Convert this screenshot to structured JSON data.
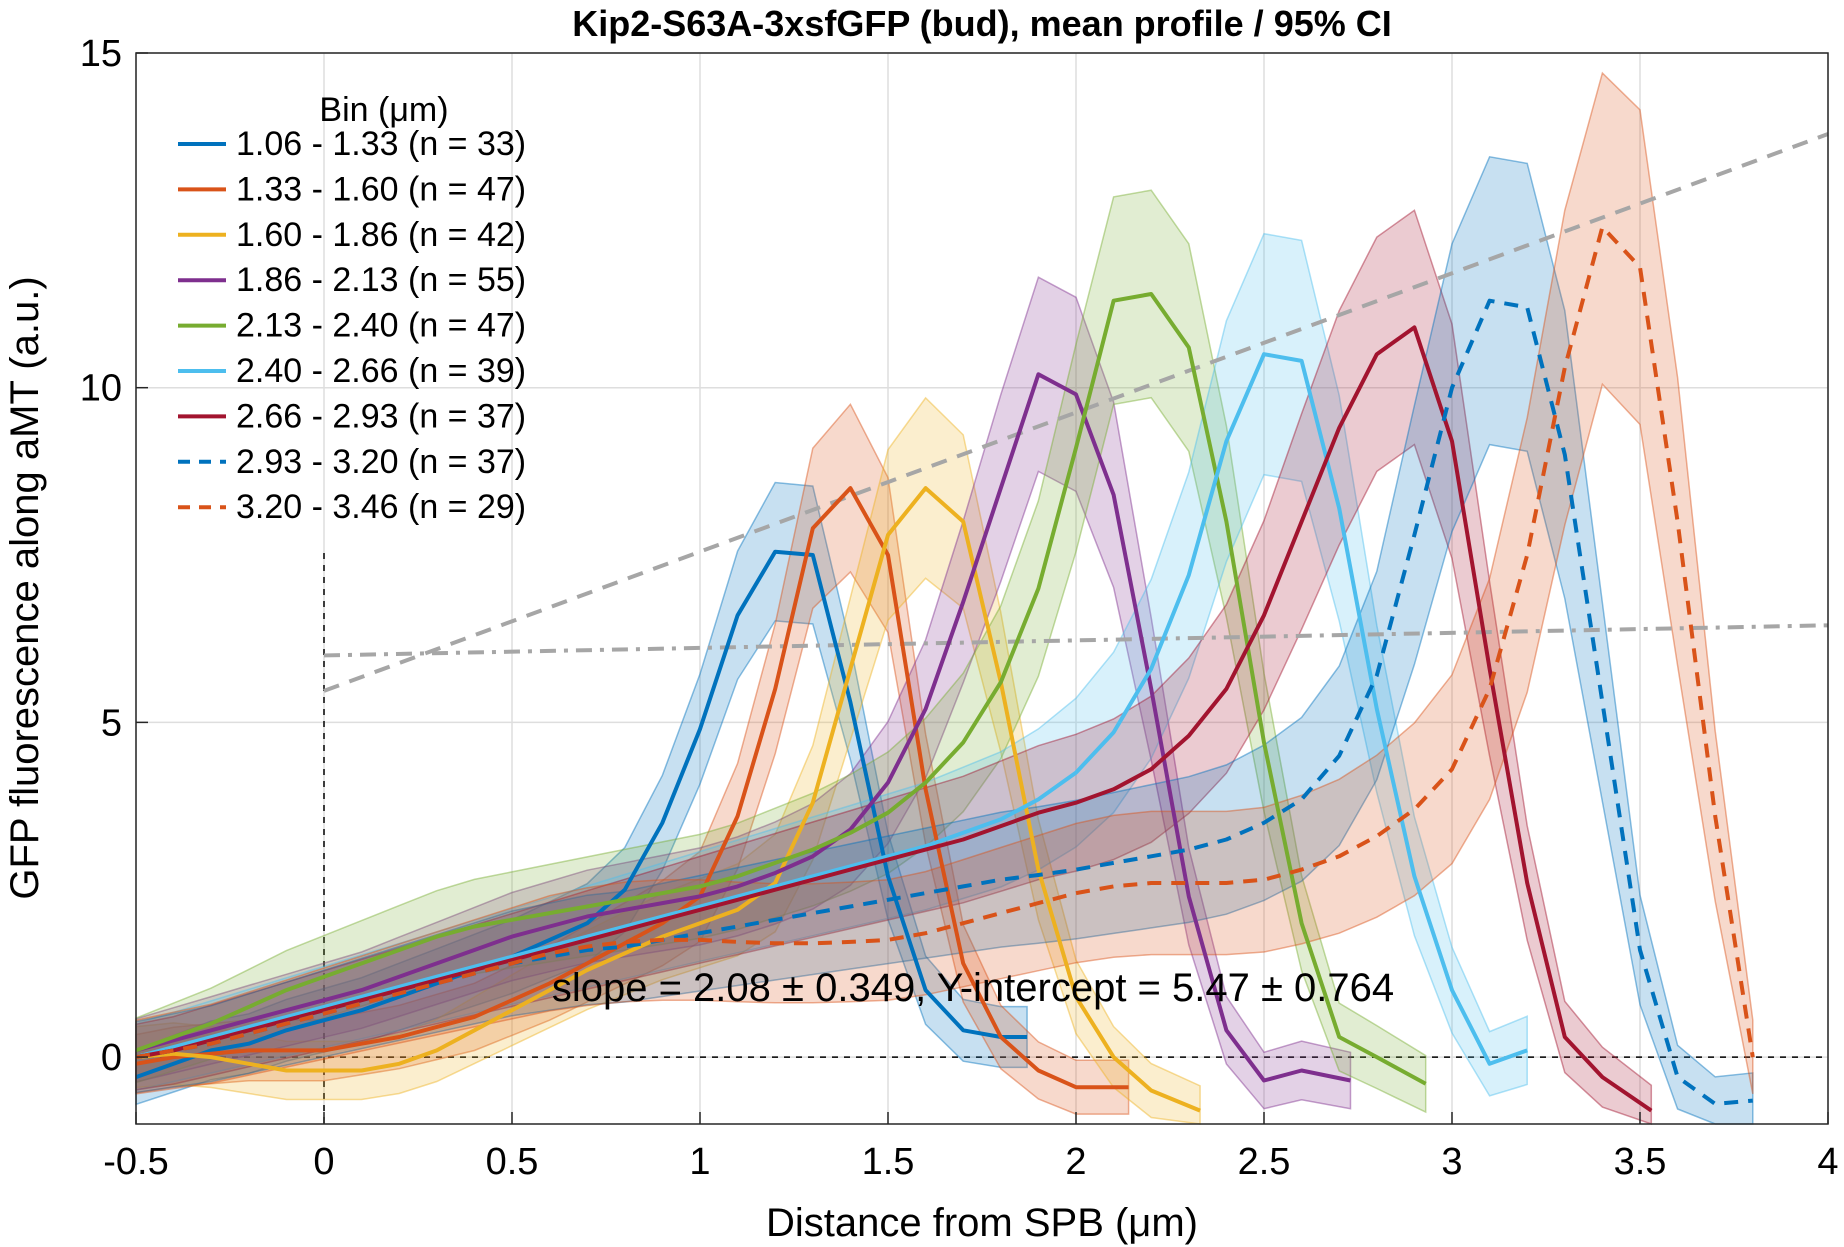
{
  "chart_data": {
    "type": "line",
    "title": "Kip2-S63A-3xsfGFP (bud), mean profile / 95% CI",
    "xlabel": "Distance from SPB (μm)",
    "ylabel": "GFP fluorescence along aMT (a.u.)",
    "xlim": [
      -0.5,
      4
    ],
    "ylim": [
      -1,
      15
    ],
    "xticks": [
      -0.5,
      0,
      0.5,
      1,
      1.5,
      2,
      2.5,
      3,
      3.5,
      4
    ],
    "xtick_labels": [
      "-0.5",
      "0",
      "0.5",
      "1",
      "1.5",
      "2",
      "2.5",
      "3",
      "3.5",
      "4"
    ],
    "yticks": [
      0,
      5,
      10,
      15
    ],
    "ytick_labels": [
      "0",
      "5",
      "10",
      "15"
    ],
    "grid": true,
    "legend": {
      "title": "Bin (μm)",
      "position": "top-left",
      "entries": [
        "1.06 - 1.33 (n =  33)",
        "1.33 - 1.60 (n =  47)",
        "1.60 - 1.86 (n =  42)",
        "1.86 - 2.13 (n =  55)",
        "2.13 - 2.40 (n =  47)",
        "2.40 - 2.66 (n =  39)",
        "2.66 - 2.93 (n =  37)",
        "2.93 - 3.20 (n =  37)",
        "3.20 - 3.46 (n =  29)"
      ]
    },
    "annotation": "slope = 2.08 ± 0.349, Y-intercept = 5.47 ± 0.764",
    "fit_lines": [
      {
        "style": "dashed",
        "color": "#a6a6a6",
        "x": [
          0,
          4
        ],
        "y": [
          5.47,
          13.79
        ]
      },
      {
        "style": "dashdot",
        "color": "#a6a6a6",
        "x": [
          0,
          4
        ],
        "y": [
          6.0,
          6.45
        ]
      }
    ],
    "series": [
      {
        "color": "#0072bd",
        "dash": false,
        "x": [
          -0.5,
          -0.4,
          -0.3,
          -0.2,
          -0.1,
          0,
          0.1,
          0.2,
          0.3,
          0.4,
          0.5,
          0.6,
          0.7,
          0.8,
          0.9,
          1.0,
          1.1,
          1.2,
          1.3,
          1.4,
          1.5,
          1.6,
          1.7,
          1.8,
          1.87
        ],
        "y": [
          -0.3,
          -0.1,
          0.1,
          0.2,
          0.4,
          0.55,
          0.7,
          0.9,
          1.1,
          1.3,
          1.5,
          1.75,
          2.0,
          2.5,
          3.5,
          4.9,
          6.6,
          7.55,
          7.5,
          5.3,
          2.7,
          1.0,
          0.4,
          0.3,
          0.3
        ],
        "ci": 0.8
      },
      {
        "color": "#d95319",
        "dash": false,
        "x": [
          -0.5,
          -0.4,
          -0.3,
          -0.2,
          -0.1,
          0,
          0.1,
          0.2,
          0.3,
          0.4,
          0.5,
          0.6,
          0.7,
          0.8,
          0.9,
          1.0,
          1.1,
          1.2,
          1.3,
          1.4,
          1.5,
          1.6,
          1.7,
          1.8,
          1.9,
          2.0,
          2.14
        ],
        "y": [
          -0.1,
          0.0,
          0.05,
          0.1,
          0.1,
          0.1,
          0.2,
          0.3,
          0.45,
          0.6,
          0.85,
          1.1,
          1.4,
          1.7,
          2.0,
          2.4,
          3.6,
          5.5,
          7.9,
          8.5,
          7.5,
          4.0,
          1.4,
          0.3,
          -0.2,
          -0.45,
          -0.45
        ],
        "ci": 0.95
      },
      {
        "color": "#edb120",
        "dash": false,
        "x": [
          -0.5,
          -0.4,
          -0.3,
          -0.2,
          -0.1,
          0,
          0.1,
          0.2,
          0.3,
          0.4,
          0.5,
          0.6,
          0.7,
          0.8,
          0.9,
          1.0,
          1.1,
          1.2,
          1.3,
          1.4,
          1.5,
          1.6,
          1.7,
          1.8,
          1.9,
          2.0,
          2.1,
          2.2,
          2.33
        ],
        "y": [
          0.0,
          0.05,
          0.0,
          -0.1,
          -0.2,
          -0.2,
          -0.2,
          -0.1,
          0.1,
          0.4,
          0.7,
          1.0,
          1.3,
          1.55,
          1.8,
          2.0,
          2.2,
          2.6,
          3.8,
          5.8,
          7.8,
          8.5,
          8.0,
          5.6,
          2.8,
          0.9,
          0.0,
          -0.5,
          -0.8
        ],
        "ci": 1.05
      },
      {
        "color": "#7e2f8e",
        "dash": false,
        "x": [
          -0.5,
          -0.4,
          -0.3,
          -0.2,
          -0.1,
          0,
          0.1,
          0.2,
          0.3,
          0.4,
          0.5,
          0.6,
          0.7,
          0.8,
          0.9,
          1.0,
          1.1,
          1.2,
          1.3,
          1.4,
          1.5,
          1.6,
          1.7,
          1.8,
          1.9,
          2.0,
          2.1,
          2.2,
          2.3,
          2.4,
          2.5,
          2.6,
          2.73
        ],
        "y": [
          0.1,
          0.25,
          0.4,
          0.55,
          0.7,
          0.85,
          1.0,
          1.2,
          1.4,
          1.6,
          1.8,
          1.95,
          2.1,
          2.2,
          2.3,
          2.4,
          2.55,
          2.75,
          3.0,
          3.4,
          4.1,
          5.2,
          6.8,
          8.5,
          10.2,
          9.9,
          8.4,
          5.5,
          2.4,
          0.4,
          -0.35,
          -0.2,
          -0.35
        ],
        "ci": 1.1
      },
      {
        "color": "#77ac30",
        "dash": false,
        "x": [
          -0.5,
          -0.4,
          -0.3,
          -0.2,
          -0.1,
          0,
          0.1,
          0.2,
          0.3,
          0.4,
          0.5,
          0.6,
          0.7,
          0.8,
          0.9,
          1.0,
          1.1,
          1.2,
          1.3,
          1.4,
          1.5,
          1.6,
          1.7,
          1.8,
          1.9,
          2.0,
          2.1,
          2.2,
          2.3,
          2.4,
          2.5,
          2.6,
          2.7,
          2.8,
          2.93
        ],
        "y": [
          0.1,
          0.3,
          0.5,
          0.75,
          1.0,
          1.2,
          1.4,
          1.6,
          1.8,
          1.95,
          2.05,
          2.15,
          2.25,
          2.35,
          2.45,
          2.55,
          2.7,
          2.9,
          3.1,
          3.35,
          3.65,
          4.1,
          4.7,
          5.6,
          7.0,
          9.1,
          11.3,
          11.4,
          10.6,
          8.0,
          4.7,
          2.0,
          0.3,
          0.0,
          -0.4
        ],
        "ci": 1.2
      },
      {
        "color": "#4dbeee",
        "dash": false,
        "x": [
          -0.5,
          -0.4,
          -0.3,
          -0.2,
          -0.1,
          0,
          0.1,
          0.2,
          0.3,
          0.4,
          0.5,
          0.6,
          0.7,
          0.8,
          0.9,
          1.0,
          1.1,
          1.2,
          1.3,
          1.4,
          1.5,
          1.6,
          1.7,
          1.8,
          1.9,
          2.0,
          2.1,
          2.2,
          2.3,
          2.4,
          2.5,
          2.6,
          2.7,
          2.8,
          2.9,
          3.0,
          3.1,
          3.2
        ],
        "y": [
          0.0,
          0.15,
          0.3,
          0.45,
          0.6,
          0.75,
          0.9,
          1.05,
          1.2,
          1.35,
          1.5,
          1.65,
          1.8,
          1.95,
          2.1,
          2.25,
          2.4,
          2.55,
          2.7,
          2.85,
          3.0,
          3.15,
          3.35,
          3.55,
          3.85,
          4.25,
          4.85,
          5.8,
          7.2,
          9.2,
          10.5,
          10.4,
          8.2,
          5.2,
          2.7,
          1.0,
          -0.1,
          0.1
        ],
        "ci": 1.45
      },
      {
        "color": "#a2142f",
        "dash": false,
        "x": [
          -0.5,
          -0.4,
          -0.3,
          -0.2,
          -0.1,
          0,
          0.1,
          0.2,
          0.3,
          0.4,
          0.5,
          0.6,
          0.7,
          0.8,
          0.9,
          1.0,
          1.1,
          1.2,
          1.3,
          1.4,
          1.5,
          1.6,
          1.7,
          1.8,
          1.9,
          2.0,
          2.1,
          2.2,
          2.3,
          2.4,
          2.5,
          2.6,
          2.7,
          2.8,
          2.9,
          3.0,
          3.1,
          3.2,
          3.3,
          3.4,
          3.53
        ],
        "y": [
          0.0,
          0.1,
          0.25,
          0.4,
          0.55,
          0.7,
          0.85,
          1.0,
          1.15,
          1.3,
          1.45,
          1.6,
          1.75,
          1.9,
          2.05,
          2.2,
          2.35,
          2.5,
          2.65,
          2.8,
          2.95,
          3.1,
          3.25,
          3.45,
          3.65,
          3.8,
          4.0,
          4.3,
          4.8,
          5.5,
          6.6,
          8.0,
          9.4,
          10.5,
          10.9,
          9.2,
          5.8,
          2.6,
          0.3,
          -0.3,
          -0.8
        ],
        "ci": 1.4
      },
      {
        "color": "#0072bd",
        "dash": true,
        "x": [
          -0.5,
          -0.4,
          -0.3,
          -0.2,
          -0.1,
          0,
          0.1,
          0.2,
          0.3,
          0.4,
          0.5,
          0.6,
          0.7,
          0.8,
          0.9,
          1.0,
          1.1,
          1.2,
          1.3,
          1.4,
          1.5,
          1.6,
          1.7,
          1.8,
          1.9,
          2.0,
          2.1,
          2.2,
          2.3,
          2.4,
          2.5,
          2.6,
          2.7,
          2.8,
          2.9,
          3.0,
          3.1,
          3.2,
          3.3,
          3.4,
          3.5,
          3.6,
          3.7,
          3.8
        ],
        "y": [
          0.0,
          0.1,
          0.2,
          0.35,
          0.5,
          0.65,
          0.8,
          0.95,
          1.1,
          1.25,
          1.4,
          1.5,
          1.6,
          1.65,
          1.75,
          1.85,
          1.95,
          2.05,
          2.15,
          2.25,
          2.35,
          2.45,
          2.55,
          2.65,
          2.72,
          2.8,
          2.9,
          3.0,
          3.1,
          3.25,
          3.5,
          3.85,
          4.5,
          5.7,
          7.8,
          10.0,
          11.3,
          11.2,
          9.0,
          5.3,
          1.6,
          -0.3,
          -0.7,
          -0.65
        ],
        "ci": 1.8
      },
      {
        "color": "#d95319",
        "dash": true,
        "x": [
          -0.5,
          -0.4,
          -0.3,
          -0.2,
          -0.1,
          0,
          0.1,
          0.2,
          0.3,
          0.4,
          0.5,
          0.6,
          0.7,
          0.8,
          0.9,
          1.0,
          1.1,
          1.2,
          1.3,
          1.4,
          1.5,
          1.6,
          1.7,
          1.8,
          1.9,
          2.0,
          2.1,
          2.2,
          2.3,
          2.4,
          2.5,
          2.6,
          2.7,
          2.8,
          2.9,
          3.0,
          3.1,
          3.2,
          3.3,
          3.4,
          3.5,
          3.6,
          3.7,
          3.8
        ],
        "y": [
          0.0,
          0.1,
          0.2,
          0.35,
          0.5,
          0.65,
          0.8,
          0.95,
          1.1,
          1.25,
          1.4,
          1.55,
          1.65,
          1.72,
          1.75,
          1.75,
          1.72,
          1.7,
          1.7,
          1.72,
          1.75,
          1.85,
          2.0,
          2.15,
          2.3,
          2.45,
          2.55,
          2.6,
          2.6,
          2.6,
          2.65,
          2.8,
          3.0,
          3.3,
          3.7,
          4.3,
          5.5,
          7.5,
          10.3,
          12.4,
          11.8,
          8.0,
          3.6,
          0.0
        ],
        "ci": 2.0
      }
    ]
  }
}
